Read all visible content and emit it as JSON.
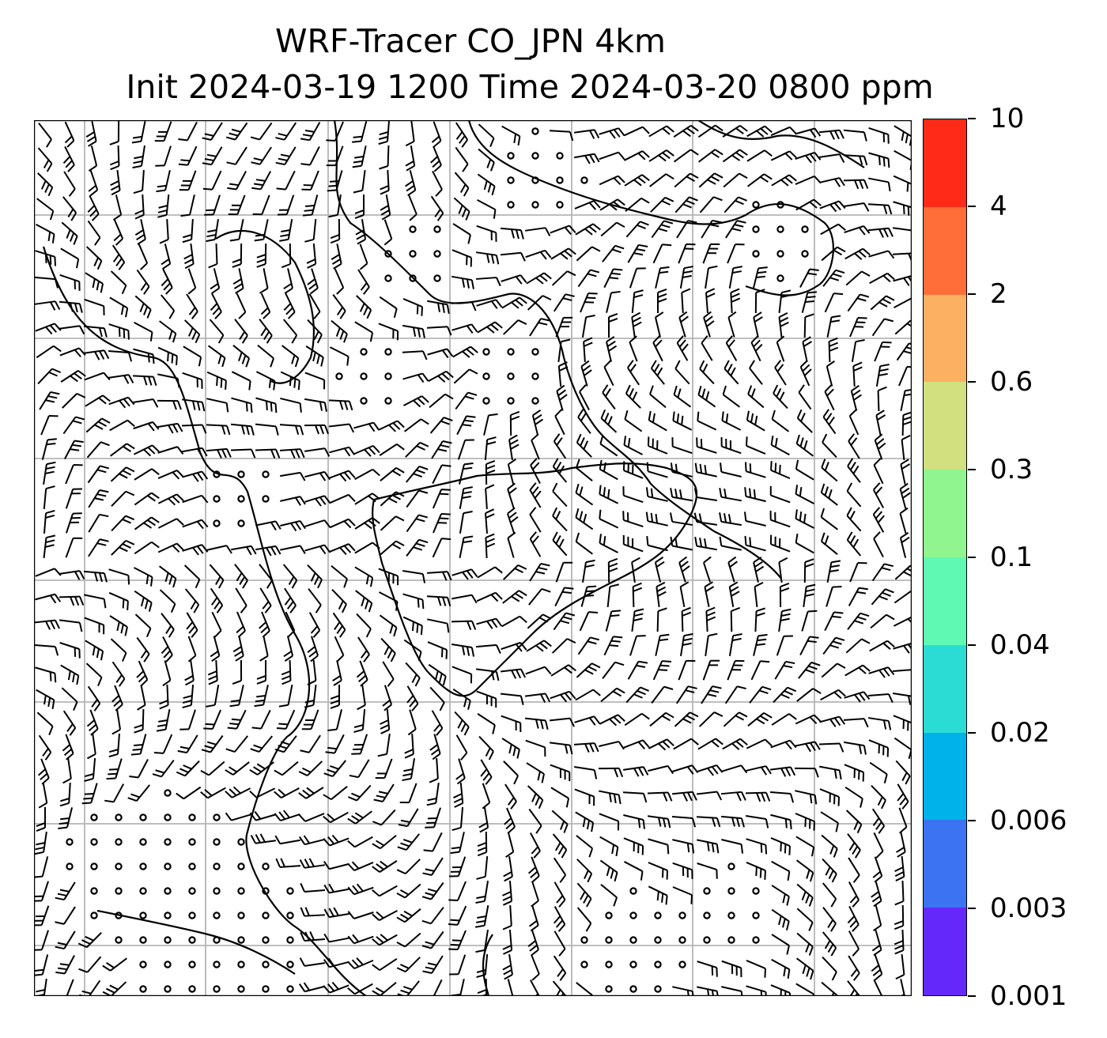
{
  "title": {
    "line1": "WRF-Tracer CO_JPN 4km",
    "line2": "Init 2024-03-19 1200 Time 2024-03-20 0800 ppm"
  },
  "colorbar": {
    "levels": [
      "0.001",
      "0.003",
      "0.006",
      "0.02",
      "0.04",
      "0.1",
      "0.3",
      "0.6",
      "2",
      "4",
      "10"
    ],
    "colors": [
      "#6429fa",
      "#3b73f2",
      "#00b2ea",
      "#2adcd4",
      "#5ff9b3",
      "#90f58f",
      "#d2e07f",
      "#fcb061",
      "#ff6e38",
      "#ff2a17"
    ]
  },
  "map": {
    "content": "wind barbs and calm-wind circles over coastline outlines",
    "grid": true
  }
}
